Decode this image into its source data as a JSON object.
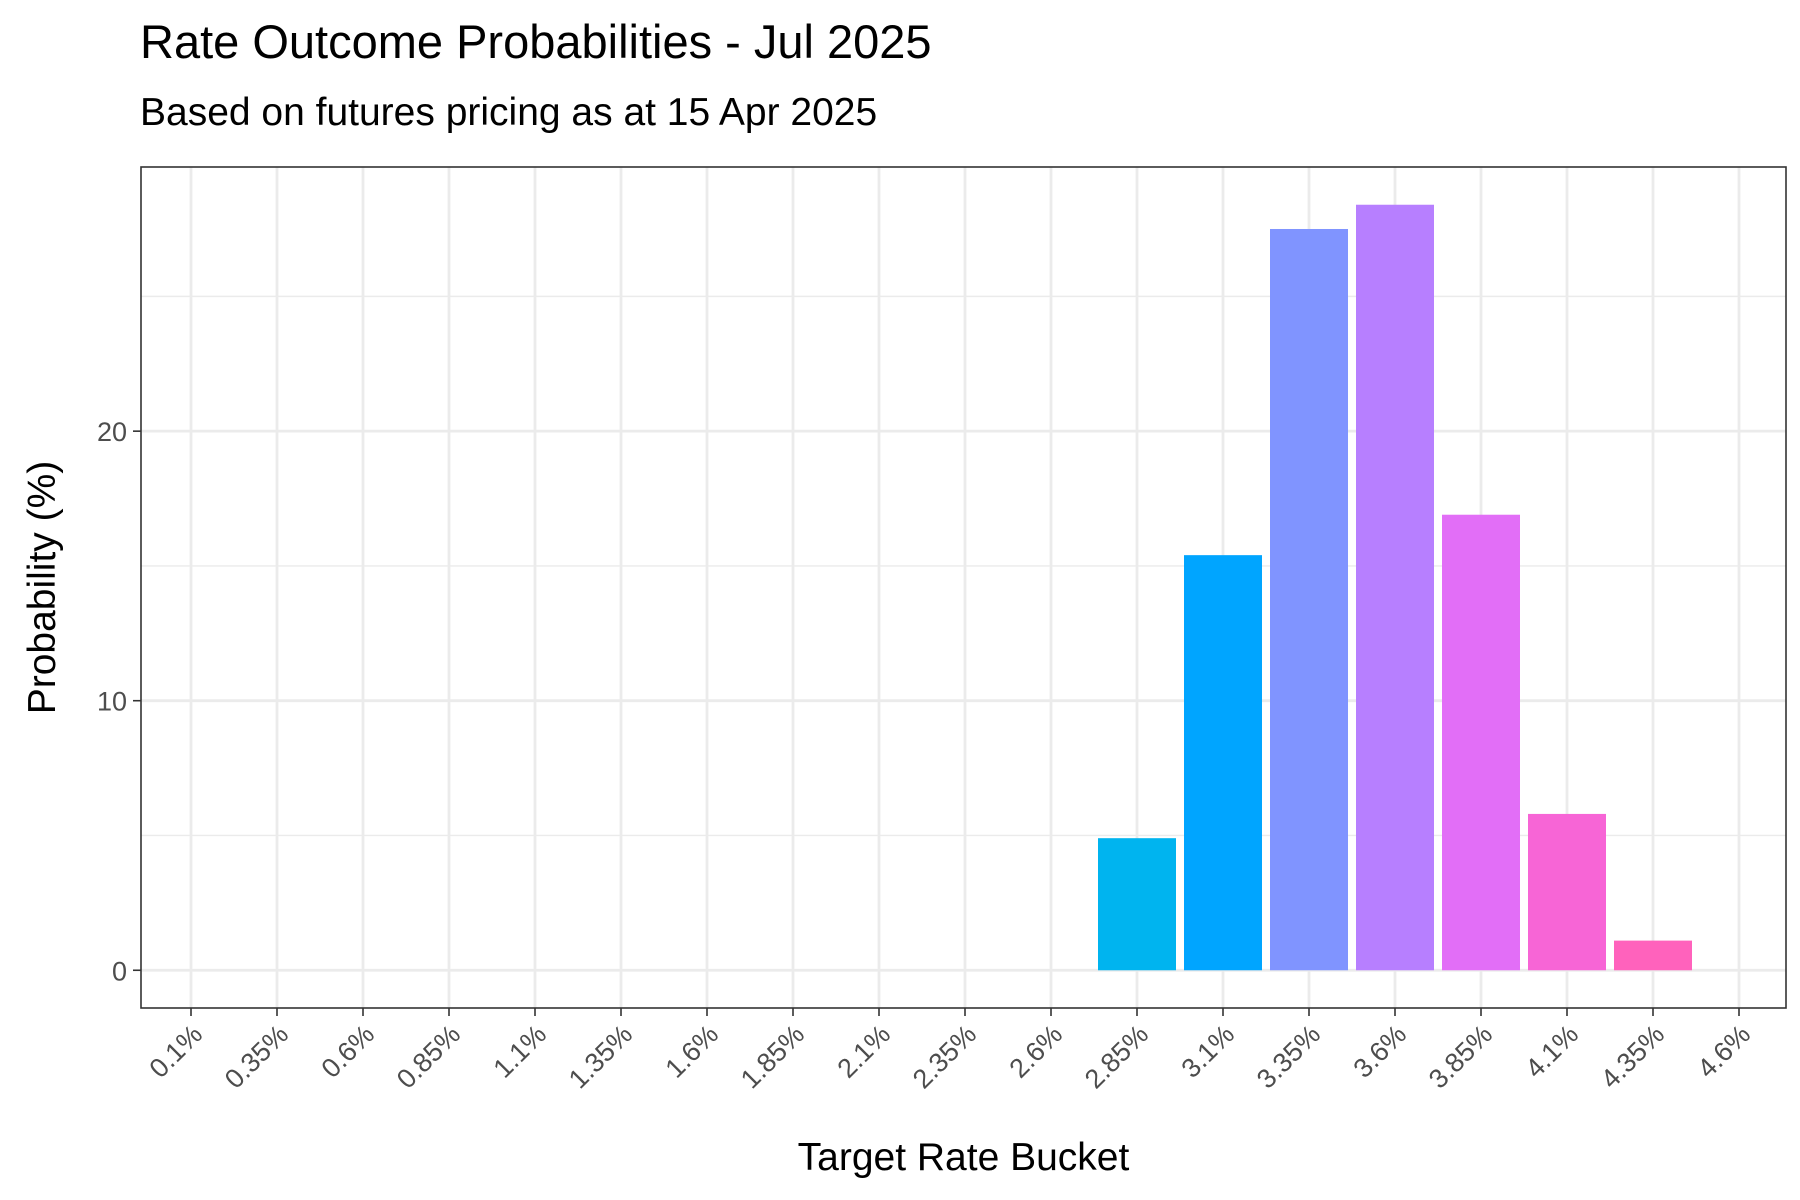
{
  "chart_data": {
    "type": "bar",
    "title": "Rate Outcome Probabilities - Jul 2025",
    "subtitle": "Based on futures pricing as at 15 Apr 2025",
    "xlabel": "Target Rate Bucket",
    "ylabel": "Probability (%)",
    "categories": [
      "0.1%",
      "0.35%",
      "0.6%",
      "0.85%",
      "1.1%",
      "1.35%",
      "1.6%",
      "1.85%",
      "2.1%",
      "2.35%",
      "2.6%",
      "2.85%",
      "3.1%",
      "3.35%",
      "3.6%",
      "3.85%",
      "4.1%",
      "4.35%",
      "4.6%"
    ],
    "values": [
      0,
      0,
      0,
      0,
      0,
      0,
      0,
      0,
      0,
      0,
      0,
      4.9,
      15.4,
      27.5,
      28.4,
      16.9,
      5.8,
      1.1,
      0
    ],
    "bar_colors": [
      "#00a5ff",
      "#00a5ff",
      "#00a5ff",
      "#00a5ff",
      "#00a5ff",
      "#00a5ff",
      "#00a5ff",
      "#00a5ff",
      "#00a5ff",
      "#00a5ff",
      "#00a5ff",
      "#00b4ef",
      "#00a5ff",
      "#8094ff",
      "#b77fff",
      "#e26ef7",
      "#f765d6",
      "#ff62bc",
      "#ff62bc"
    ],
    "yticks": [
      0,
      10,
      20
    ],
    "ylim": [
      -1.4,
      29.8
    ],
    "grid": true,
    "legend": "none"
  }
}
